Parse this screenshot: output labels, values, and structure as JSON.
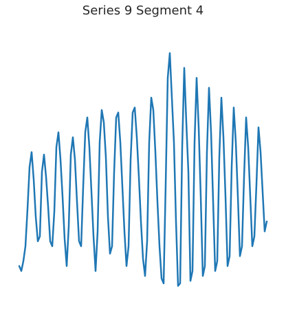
{
  "chart_data": {
    "type": "line",
    "title": "Series 9 Segment 4",
    "xlabel": "",
    "ylabel": "",
    "axes_visible": false,
    "grid": false,
    "legend": "none",
    "xlim": [
      0,
      120
    ],
    "ylim": [
      0,
      1
    ],
    "series": [
      {
        "color": "#1f77b4",
        "x": [
          0,
          1,
          2,
          3,
          4,
          5,
          6,
          7,
          8,
          9,
          10,
          11,
          12,
          13,
          14,
          15,
          16,
          17,
          18,
          19,
          20,
          21,
          22,
          23,
          24,
          25,
          26,
          27,
          28,
          29,
          30,
          31,
          32,
          33,
          34,
          35,
          36,
          37,
          38,
          39,
          40,
          41,
          42,
          43,
          44,
          45,
          46,
          47,
          48,
          49,
          50,
          51,
          52,
          53,
          54,
          55,
          56,
          57,
          58,
          59,
          60,
          61,
          62,
          63,
          64,
          65,
          66,
          67,
          68,
          69,
          70,
          71,
          72,
          73,
          74,
          75,
          76,
          77,
          78,
          79,
          80,
          81,
          82,
          83,
          84,
          85,
          86,
          87,
          88,
          89,
          90,
          91,
          92,
          93,
          94,
          95,
          96,
          97,
          98,
          99,
          100,
          101,
          102,
          103,
          104,
          105,
          106,
          107,
          108,
          109,
          110,
          111,
          112,
          113,
          114,
          115,
          116,
          117,
          118,
          119,
          120
        ],
        "y": [
          0.12,
          0.1,
          0.14,
          0.2,
          0.35,
          0.52,
          0.58,
          0.47,
          0.32,
          0.22,
          0.24,
          0.5,
          0.57,
          0.48,
          0.36,
          0.22,
          0.2,
          0.34,
          0.6,
          0.66,
          0.55,
          0.4,
          0.23,
          0.12,
          0.28,
          0.57,
          0.64,
          0.55,
          0.38,
          0.22,
          0.2,
          0.44,
          0.66,
          0.72,
          0.6,
          0.42,
          0.24,
          0.1,
          0.26,
          0.62,
          0.75,
          0.7,
          0.56,
          0.32,
          0.17,
          0.2,
          0.5,
          0.72,
          0.74,
          0.62,
          0.44,
          0.26,
          0.12,
          0.2,
          0.55,
          0.74,
          0.76,
          0.64,
          0.48,
          0.3,
          0.15,
          0.08,
          0.22,
          0.62,
          0.8,
          0.75,
          0.58,
          0.38,
          0.2,
          0.07,
          0.05,
          0.45,
          0.88,
          0.98,
          0.8,
          0.62,
          0.3,
          0.04,
          0.05,
          0.6,
          0.92,
          0.7,
          0.5,
          0.06,
          0.1,
          0.62,
          0.88,
          0.68,
          0.4,
          0.08,
          0.12,
          0.58,
          0.84,
          0.66,
          0.38,
          0.1,
          0.14,
          0.56,
          0.8,
          0.64,
          0.4,
          0.12,
          0.16,
          0.52,
          0.76,
          0.62,
          0.4,
          0.16,
          0.2,
          0.48,
          0.72,
          0.6,
          0.4,
          0.2,
          0.24,
          0.45,
          0.68,
          0.58,
          0.42,
          0.26,
          0.3
        ]
      }
    ]
  }
}
